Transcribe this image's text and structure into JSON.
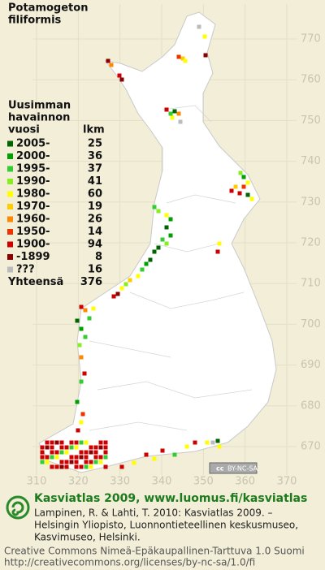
{
  "title": [
    "Potamogeton",
    "filiformis"
  ],
  "legend": {
    "header": [
      "Uusimman",
      "havainnon",
      "vuosi"
    ],
    "count_header": "lkm",
    "rows": [
      {
        "label": "2005-",
        "count": 25,
        "color": "#006400"
      },
      {
        "label": "2000-",
        "count": 36,
        "color": "#00a000"
      },
      {
        "label": "1995-",
        "count": 37,
        "color": "#33cc33"
      },
      {
        "label": "1990-",
        "count": 41,
        "color": "#88ee22"
      },
      {
        "label": "1980-",
        "count": 60,
        "color": "#ffff00"
      },
      {
        "label": "1970-",
        "count": 19,
        "color": "#ffcc00"
      },
      {
        "label": "1960-",
        "count": 26,
        "color": "#ff8800"
      },
      {
        "label": "1950-",
        "count": 14,
        "color": "#ee3300"
      },
      {
        "label": "1900-",
        "count": 94,
        "color": "#cc0000"
      },
      {
        "label": "-1899",
        "count": 8,
        "color": "#880000"
      },
      {
        "label": "???",
        "count": 16,
        "color": "#bbbbbb"
      }
    ],
    "total_label": "Yhteensä",
    "total": 376
  },
  "map": {
    "xticks": [
      310,
      320,
      330,
      340,
      350,
      360,
      370
    ],
    "yticks": [
      670,
      680,
      690,
      700,
      710,
      720,
      730,
      740,
      750,
      760,
      770
    ]
  },
  "badge": {
    "icon": "cc",
    "text": "BY-NC-SA"
  },
  "footer": {
    "heading": "Kasviatlas 2009, www.luomus.fi/kasviatlas",
    "citation": [
      "Lampinen, R. & Lahti, T. 2010: Kasviatlas 2009. –",
      "Helsingin Yliopisto, Luonnontieteellinen keskusmuseo,",
      "Kasvimuseo, Helsinki."
    ],
    "license": [
      "Creative Commons Nimeä-Epäkaupallinen-Tarttuva 1.0 Suomi",
      "http://creativecommons.org/licenses/by-nc-sa/1.0/fi"
    ]
  }
}
